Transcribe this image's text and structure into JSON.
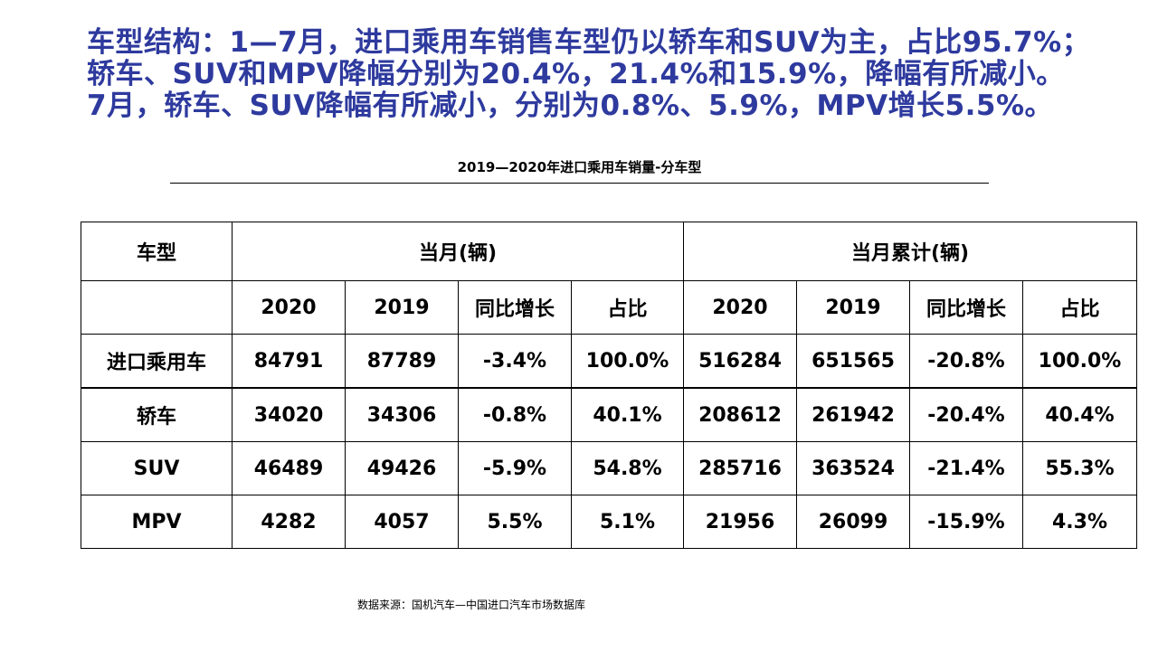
{
  "headline": {
    "line1": "车型结构：1—7月，进口乘用车销售车型仍以轿车和SUV为主，占比95.7%；",
    "line2": "轿车、SUV和MPV降幅分别为20.4%，21.4%和15.9%，降幅有所减小。",
    "line3": "7月，轿车、SUV降幅有所减小，分别为0.8%、5.9%，MPV增长5.5%。"
  },
  "table_title": "2019—2020年进口乘用车销量-分车型",
  "table": {
    "header_type": "车型",
    "group_month": "当月(辆)",
    "group_cumulative": "当月累计(辆)",
    "subheaders": {
      "month": [
        "2020",
        "2019",
        "同比增长",
        "占比"
      ],
      "cumulative": [
        "2020",
        "2019",
        "同比增长",
        "占比"
      ]
    },
    "rows": [
      {
        "type": "进口乘用车",
        "cells": [
          "84791",
          "87789",
          "-3.4%",
          "100.0%",
          "516284",
          "651565",
          "-20.8%",
          "100.0%"
        ]
      },
      {
        "type": "轿车",
        "cells": [
          "34020",
          "34306",
          "-0.8%",
          "40.1%",
          "208612",
          "261942",
          "-20.4%",
          "40.4%"
        ]
      },
      {
        "type": "SUV",
        "cells": [
          "46489",
          "49426",
          "-5.9%",
          "54.8%",
          "285716",
          "363524",
          "-21.4%",
          "55.3%"
        ]
      },
      {
        "type": "MPV",
        "cells": [
          "4282",
          "4057",
          "5.5%",
          "5.1%",
          "21956",
          "26099",
          "-15.9%",
          "4.3%"
        ]
      }
    ]
  },
  "source": "数据来源：国机汽车—中国进口汽车市场数据库",
  "colors": {
    "headline": "#2e3a9e"
  }
}
